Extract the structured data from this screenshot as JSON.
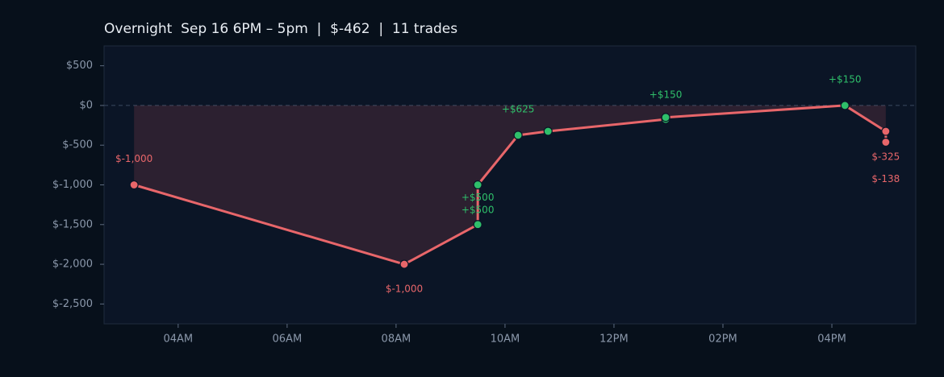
{
  "chart_data": {
    "type": "line",
    "title": "Overnight  Sep 16 6PM – 5pm  |  $-462  |  11 trades",
    "x": [
      3.19,
      8.15,
      9.5,
      9.5,
      10.24,
      10.79,
      12.95,
      12.95,
      16.24,
      16.99,
      16.99
    ],
    "series": [
      {
        "color": "#e8666a",
        "values": [
          -1000,
          -2000,
          -1500,
          -1000,
          -375,
          -325,
          -175,
          -150,
          0,
          -325,
          -462
        ],
        "point_colors": [
          "#e8666a",
          "#e8666a",
          "#2fbf6a",
          "#2fbf6a",
          "#2fbf6a",
          "#2fbf6a",
          "#2fbf6a",
          "#2fbf6a",
          "#2fbf6a",
          "#e8666a",
          "#e8666a"
        ],
        "trades": [
          -1000,
          -1000,
          500,
          500,
          625,
          50,
          150,
          25,
          150,
          -325,
          -138
        ],
        "trade_labels": [
          "$-1,000",
          "$-1,000",
          "+$500",
          "+$500",
          "+$625",
          null,
          "+$150",
          null,
          "+$150",
          "$-325",
          "$-138"
        ]
      }
    ],
    "xlim": [
      2.64,
      17.54
    ],
    "xticks": [
      {
        "value": 4,
        "label": "04AM"
      },
      {
        "value": 6,
        "label": "06AM"
      },
      {
        "value": 8,
        "label": "08AM"
      },
      {
        "value": 10,
        "label": "10AM"
      },
      {
        "value": 12,
        "label": "12PM"
      },
      {
        "value": 14,
        "label": "02PM"
      },
      {
        "value": 16,
        "label": "04PM"
      }
    ],
    "ylim": [
      -2750,
      750
    ],
    "yticks": [
      {
        "value": 500,
        "label": "$500"
      },
      {
        "value": 0,
        "label": "$0"
      },
      {
        "value": -500,
        "label": "$-500"
      },
      {
        "value": -1000,
        "label": "$-1,000"
      },
      {
        "value": -1500,
        "label": "$-1,500"
      },
      {
        "value": -2000,
        "label": "$-2,000"
      },
      {
        "value": -2500,
        "label": "$-2,500"
      }
    ]
  }
}
